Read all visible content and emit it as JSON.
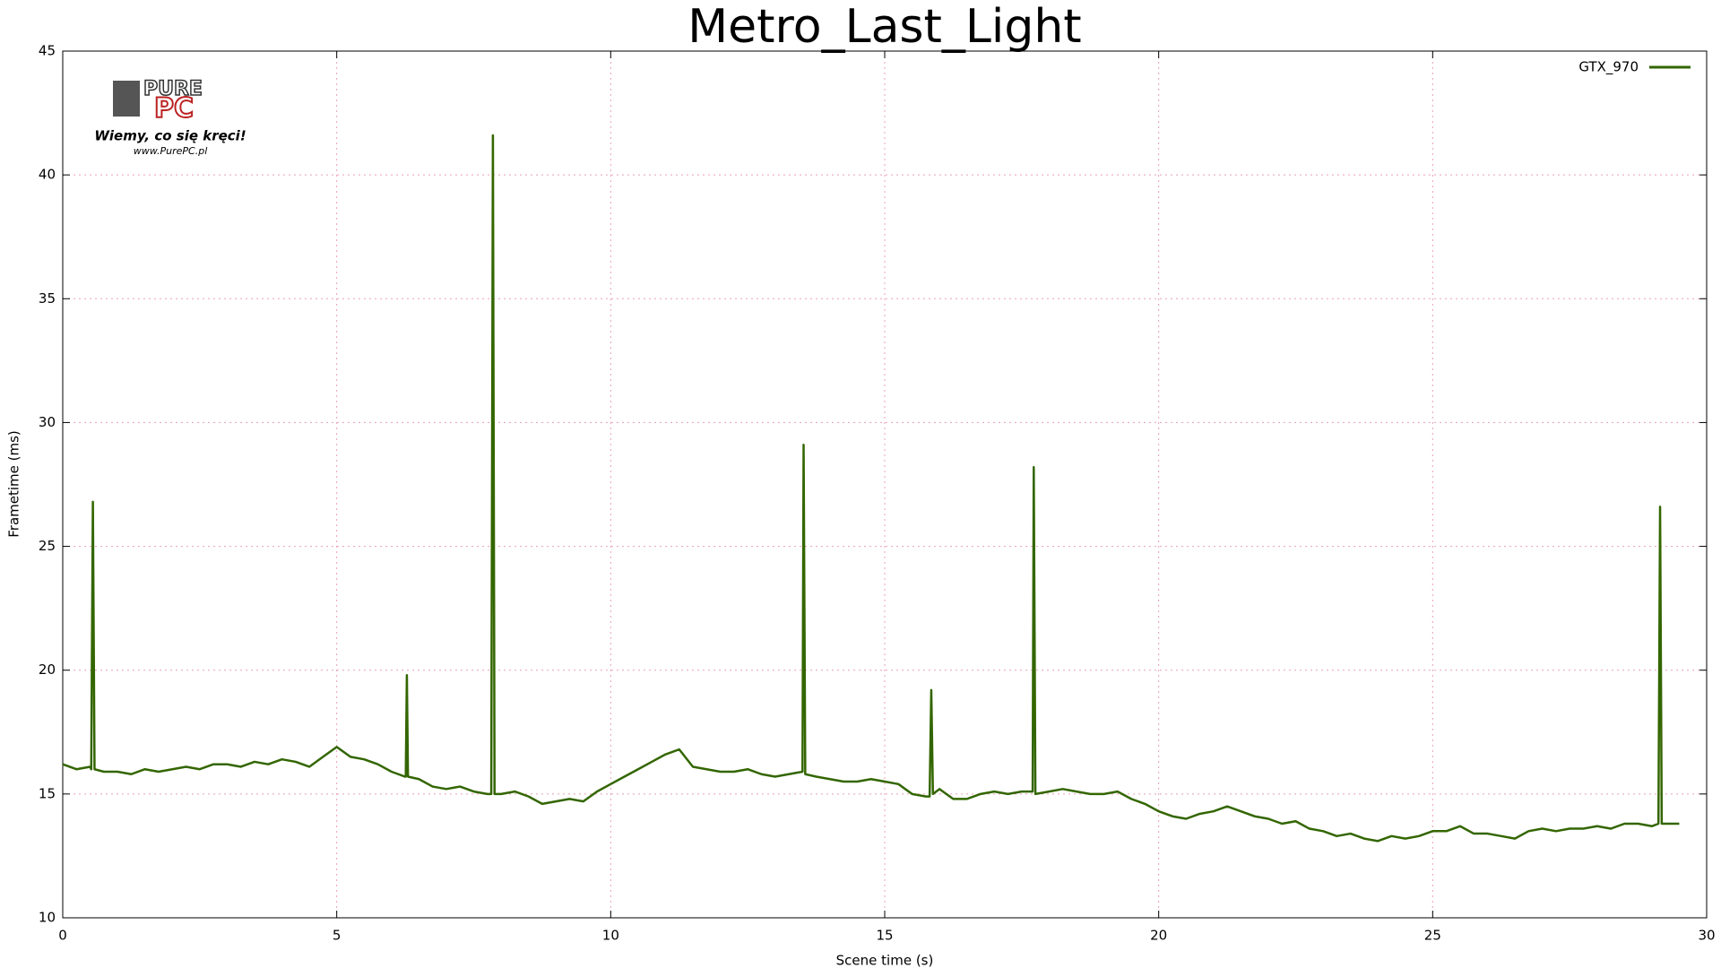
{
  "chart_data": {
    "type": "line",
    "title": "Metro_Last_Light",
    "xlabel": "Scene time (s)",
    "ylabel": "Frametime (ms)",
    "xlim": [
      0,
      30
    ],
    "xticks": [
      0,
      5,
      10,
      15,
      20,
      25,
      30
    ],
    "ylim": [
      10,
      45
    ],
    "yticks": [
      10,
      15,
      20,
      25,
      30,
      35,
      40,
      45
    ],
    "grid": true,
    "legend": "top-right",
    "logo": {
      "name": [
        "PURE",
        "PC"
      ],
      "slogan": "Wiemy, co się kręci!",
      "url": "www.PurePC.pl"
    },
    "x": [
      0,
      0.25,
      0.5,
      0.52,
      0.55,
      0.58,
      0.75,
      1,
      1.25,
      1.5,
      1.75,
      2,
      2.25,
      2.5,
      2.75,
      3,
      3.25,
      3.5,
      3.75,
      4,
      4.25,
      4.5,
      4.75,
      5,
      5.25,
      5.5,
      5.75,
      6,
      6.25,
      6.26,
      6.28,
      6.3,
      6.5,
      6.75,
      7,
      7.25,
      7.5,
      7.75,
      7.82,
      7.85,
      7.88,
      8,
      8.25,
      8.5,
      8.75,
      9,
      9.25,
      9.5,
      9.75,
      10,
      10.25,
      10.5,
      10.75,
      11,
      11.25,
      11.5,
      11.75,
      12,
      12.25,
      12.5,
      12.75,
      13,
      13.25,
      13.5,
      13.52,
      13.55,
      13.75,
      14,
      14.25,
      14.5,
      14.75,
      15,
      15.25,
      15.5,
      15.75,
      15.82,
      15.85,
      15.88,
      16,
      16.25,
      16.5,
      16.75,
      17,
      17.25,
      17.5,
      17.7,
      17.72,
      17.75,
      18,
      18.25,
      18.5,
      18.75,
      19,
      19.25,
      19.5,
      19.75,
      20,
      20.25,
      20.5,
      20.75,
      21,
      21.25,
      21.5,
      21.75,
      22,
      22.25,
      22.5,
      22.75,
      23,
      23.25,
      23.5,
      23.75,
      24,
      24.25,
      24.5,
      24.75,
      25,
      25.25,
      25.5,
      25.75,
      26,
      26.25,
      26.5,
      26.75,
      27,
      27.25,
      27.5,
      27.75,
      28,
      28.25,
      28.5,
      28.75,
      29,
      29.12,
      29.15,
      29.18,
      29.25,
      29.5
    ],
    "series": [
      {
        "name": "GTX_970",
        "color": "#336600",
        "values": [
          16.2,
          16.0,
          16.1,
          16.0,
          26.8,
          16.0,
          15.9,
          15.9,
          15.8,
          16.0,
          15.9,
          16.0,
          16.1,
          16.0,
          16.2,
          16.2,
          16.1,
          16.3,
          16.2,
          16.4,
          16.3,
          16.1,
          16.5,
          16.9,
          16.5,
          16.4,
          16.2,
          15.9,
          15.7,
          15.7,
          19.8,
          15.7,
          15.6,
          15.3,
          15.2,
          15.3,
          15.1,
          15.0,
          15.0,
          41.6,
          15.0,
          15.0,
          15.1,
          14.9,
          14.6,
          14.7,
          14.8,
          14.7,
          15.1,
          15.4,
          15.7,
          16.0,
          16.3,
          16.6,
          16.8,
          16.1,
          16.0,
          15.9,
          15.9,
          16.0,
          15.8,
          15.7,
          15.8,
          15.9,
          29.1,
          15.8,
          15.7,
          15.6,
          15.5,
          15.5,
          15.6,
          15.5,
          15.4,
          15.0,
          14.9,
          14.9,
          19.2,
          15.0,
          15.2,
          14.8,
          14.8,
          15.0,
          15.1,
          15.0,
          15.1,
          15.1,
          28.2,
          15.0,
          15.1,
          15.2,
          15.1,
          15.0,
          15.0,
          15.1,
          14.8,
          14.6,
          14.3,
          14.1,
          14.0,
          14.2,
          14.3,
          14.5,
          14.3,
          14.1,
          14.0,
          13.8,
          13.9,
          13.6,
          13.5,
          13.3,
          13.4,
          13.2,
          13.1,
          13.3,
          13.2,
          13.3,
          13.5,
          13.5,
          13.7,
          13.4,
          13.4,
          13.3,
          13.2,
          13.5,
          13.6,
          13.5,
          13.6,
          13.6,
          13.7,
          13.6,
          13.8,
          13.8,
          13.7,
          13.8,
          26.6,
          13.8,
          13.8,
          13.8
        ]
      }
    ]
  }
}
